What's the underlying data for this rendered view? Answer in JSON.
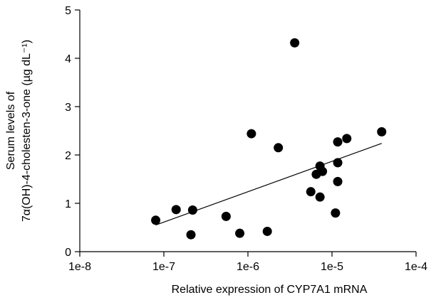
{
  "chart_data": {
    "type": "scatter",
    "title": "",
    "xlabel": "Relative expression of CYP7A1 mRNA",
    "ylabel_line1": "Serum levels of",
    "ylabel_line2": "7α(OH)-4-cholesten-3-one (µg dL⁻¹)",
    "x_scale": "log",
    "xlim": [
      1e-08,
      0.0001
    ],
    "ylim": [
      0,
      5
    ],
    "x_ticks": [
      1e-08,
      1e-07,
      1e-06,
      1e-05,
      0.0001
    ],
    "x_tick_labels": [
      "1e-8",
      "1e-7",
      "1e-6",
      "1e-5",
      "1e-4"
    ],
    "y_ticks": [
      0,
      1,
      2,
      3,
      4,
      5
    ],
    "y_tick_labels": [
      "0",
      "1",
      "2",
      "3",
      "4",
      "5"
    ],
    "grid": false,
    "points": [
      {
        "x": 8e-08,
        "y": 0.65
      },
      {
        "x": 1.4e-07,
        "y": 0.87
      },
      {
        "x": 2.1e-07,
        "y": 0.35
      },
      {
        "x": 2.2e-07,
        "y": 0.86
      },
      {
        "x": 5.5e-07,
        "y": 0.73
      },
      {
        "x": 8e-07,
        "y": 0.38
      },
      {
        "x": 1.1e-06,
        "y": 2.44
      },
      {
        "x": 1.7e-06,
        "y": 0.42
      },
      {
        "x": 2.3e-06,
        "y": 2.15
      },
      {
        "x": 3.6e-06,
        "y": 4.32
      },
      {
        "x": 5.6e-06,
        "y": 1.24
      },
      {
        "x": 6.5e-06,
        "y": 1.6
      },
      {
        "x": 7.2e-06,
        "y": 1.77
      },
      {
        "x": 7.2e-06,
        "y": 1.13
      },
      {
        "x": 7.7e-06,
        "y": 1.66
      },
      {
        "x": 1.1e-05,
        "y": 0.8
      },
      {
        "x": 1.17e-05,
        "y": 2.27
      },
      {
        "x": 1.17e-05,
        "y": 1.84
      },
      {
        "x": 1.17e-05,
        "y": 1.45
      },
      {
        "x": 1.5e-05,
        "y": 2.34
      },
      {
        "x": 3.9e-05,
        "y": 2.48
      }
    ],
    "trendline": {
      "x": [
        8e-08,
        3.9e-05
      ],
      "y": [
        0.55,
        2.24
      ]
    }
  }
}
